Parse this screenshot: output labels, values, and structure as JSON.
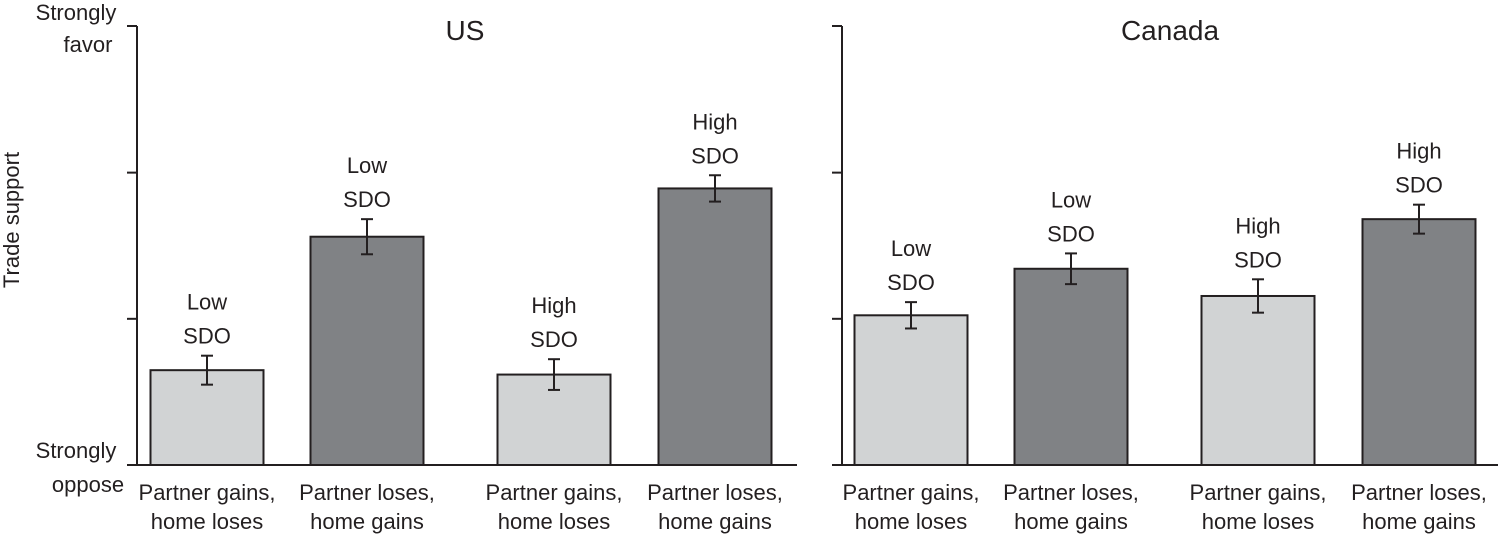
{
  "y_axis": {
    "label": "Trade support",
    "top_label": [
      "Strongly",
      "favor"
    ],
    "bottom_label": [
      "Strongly",
      "oppose"
    ]
  },
  "colors": {
    "light_bar": "#d1d3d4",
    "dark_bar": "#808285",
    "stroke": "#231f20"
  },
  "chart_data": [
    {
      "type": "bar",
      "title": "US",
      "ylabel": "Trade support",
      "ylim": [
        0,
        1
      ],
      "categories": [
        [
          "Partner gains,",
          "home loses"
        ],
        [
          "Partner loses,",
          "home gains"
        ],
        [
          "Partner gains,",
          "home loses"
        ],
        [
          "Partner loses,",
          "home gains"
        ]
      ],
      "bars": [
        {
          "group": [
            "Low",
            "SDO"
          ],
          "value": 0.216,
          "error": 0.033,
          "shade": "light"
        },
        {
          "group": [
            "Low",
            "SDO"
          ],
          "value": 0.52,
          "error": 0.04,
          "shade": "dark"
        },
        {
          "group": [
            "High",
            "SDO"
          ],
          "value": 0.206,
          "error": 0.035,
          "shade": "light"
        },
        {
          "group": [
            "High",
            "SDO"
          ],
          "value": 0.63,
          "error": 0.03,
          "shade": "dark"
        }
      ]
    },
    {
      "type": "bar",
      "title": "Canada",
      "ylabel": "Trade support",
      "ylim": [
        0,
        1
      ],
      "categories": [
        [
          "Partner gains,",
          "home loses"
        ],
        [
          "Partner loses,",
          "home gains"
        ],
        [
          "Partner gains,",
          "home loses"
        ],
        [
          "Partner loses,",
          "home gains"
        ]
      ],
      "bars": [
        {
          "group": [
            "Low",
            "SDO"
          ],
          "value": 0.341,
          "error": 0.03,
          "shade": "light"
        },
        {
          "group": [
            "Low",
            "SDO"
          ],
          "value": 0.447,
          "error": 0.035,
          "shade": "dark"
        },
        {
          "group": [
            "High",
            "SDO"
          ],
          "value": 0.385,
          "error": 0.038,
          "shade": "light"
        },
        {
          "group": [
            "High",
            "SDO"
          ],
          "value": 0.56,
          "error": 0.033,
          "shade": "dark"
        }
      ]
    }
  ]
}
